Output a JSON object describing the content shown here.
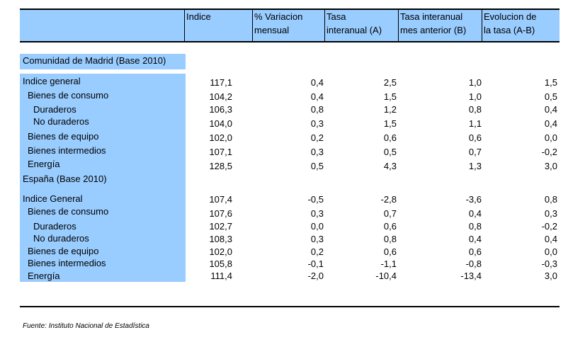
{
  "header": {
    "col1": "Indice",
    "col2": [
      "% Variacion",
      "mensual"
    ],
    "col3": [
      "Tasa",
      "interanual (A)"
    ],
    "col4": [
      "Tasa interanual",
      "mes anterior (B)"
    ],
    "col5": [
      "Evolucion de",
      "la tasa (A-B)"
    ]
  },
  "sections": [
    {
      "title": "Comunidad de Madrid (Base 2010)",
      "rows": [
        {
          "label": "Indice general",
          "indent": 0,
          "values": [
            "117,1",
            "0,4",
            "2,5",
            "1,0",
            "1,5"
          ]
        },
        {
          "label": "Bienes de consumo",
          "indent": 1,
          "values": [
            "104,2",
            "0,4",
            "1,5",
            "1,0",
            "0,5"
          ]
        },
        {
          "label": "Duraderos",
          "indent": 2,
          "values": [
            "106,3",
            "0,8",
            "1,2",
            "0,8",
            "0,4"
          ]
        },
        {
          "label": "No duraderos",
          "indent": 2,
          "values": [
            "104,0",
            "0,3",
            "1,5",
            "1,1",
            "0,4"
          ]
        },
        {
          "label": "Bienes de equipo",
          "indent": 1,
          "values": [
            "102,0",
            "0,2",
            "0,6",
            "0,6",
            "0,0"
          ]
        },
        {
          "label": "Bienes intermedios",
          "indent": 1,
          "values": [
            "107,1",
            "0,3",
            "0,5",
            "0,7",
            "-0,2"
          ]
        },
        {
          "label": "Energía",
          "indent": 1,
          "values": [
            "128,5",
            "0,5",
            "4,3",
            "1,3",
            "3,0"
          ]
        }
      ]
    },
    {
      "title": "España (Base 2010)",
      "rows": [
        {
          "label": "Indice General",
          "indent": 0,
          "values": [
            "107,4",
            "-0,5",
            "-2,8",
            "-3,6",
            "0,8"
          ]
        },
        {
          "label": "Bienes de consumo",
          "indent": 1,
          "values": [
            "107,6",
            "0,3",
            "0,7",
            "0,4",
            "0,3"
          ]
        },
        {
          "label": "Duraderos",
          "indent": 2,
          "values": [
            "102,7",
            "0,0",
            "0,6",
            "0,8",
            "-0,2"
          ]
        },
        {
          "label": "No duraderos",
          "indent": 2,
          "values": [
            "108,3",
            "0,3",
            "0,8",
            "0,4",
            "0,4"
          ]
        },
        {
          "label": "Bienes de equipo",
          "indent": 1,
          "values": [
            "102,0",
            "0,2",
            "0,6",
            "0,6",
            "0,0"
          ]
        },
        {
          "label": "Bienes intermedios",
          "indent": 1,
          "values": [
            "105,8",
            "-0,1",
            "-1,1",
            "-0,8",
            "-0,3"
          ]
        },
        {
          "label": "Energía",
          "indent": 1,
          "values": [
            "111,4",
            "-2,0",
            "-10,4",
            "-13,4",
            "3,0"
          ]
        }
      ]
    }
  ],
  "source": "Fuente: Instituto Nacional de Estadística"
}
